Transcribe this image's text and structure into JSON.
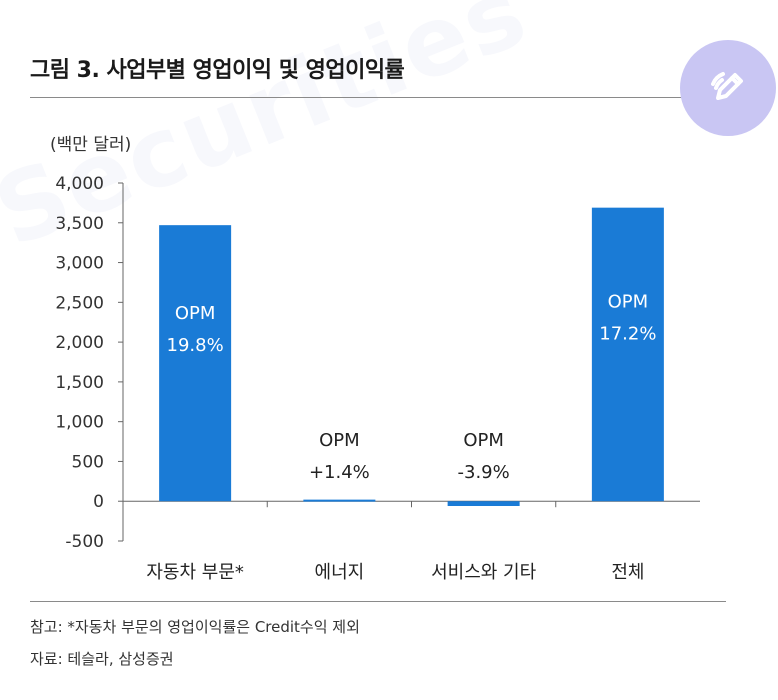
{
  "title": "그림 3. 사업부별 영업이익 및 영업이익률",
  "watermark": "Securities",
  "edit_button_icon": "pencil-icon",
  "chart_data": {
    "type": "bar",
    "unit_label": "(백만 달러)",
    "categories": [
      "자동차 부문*",
      "에너지",
      "서비스와 기타",
      "전체"
    ],
    "values": [
      3470,
      20,
      -60,
      3690
    ],
    "ylim": [
      -500,
      4000
    ],
    "yticks": [
      -500,
      0,
      500,
      1000,
      1500,
      2000,
      2500,
      3000,
      3500,
      4000
    ],
    "ytick_labels": [
      "-500",
      "0",
      "500",
      "1,000",
      "1,500",
      "2,000",
      "2,500",
      "3,000",
      "3,500",
      "4,000"
    ],
    "bar_color": "#1a7bd6",
    "annotations": [
      {
        "line1": "OPM",
        "line2": "19.8%",
        "placement": "inside"
      },
      {
        "line1": "OPM",
        "line2": "+1.4%",
        "placement": "above"
      },
      {
        "line1": "OPM",
        "line2": "-3.9%",
        "placement": "above"
      },
      {
        "line1": "OPM",
        "line2": "17.2%",
        "placement": "inside"
      }
    ],
    "grid": false
  },
  "notes": {
    "reference": "참고: *자동차 부문의 영업이익률은 Credit수익 제외",
    "source": "자료: 테슬라, 삼성증권"
  }
}
